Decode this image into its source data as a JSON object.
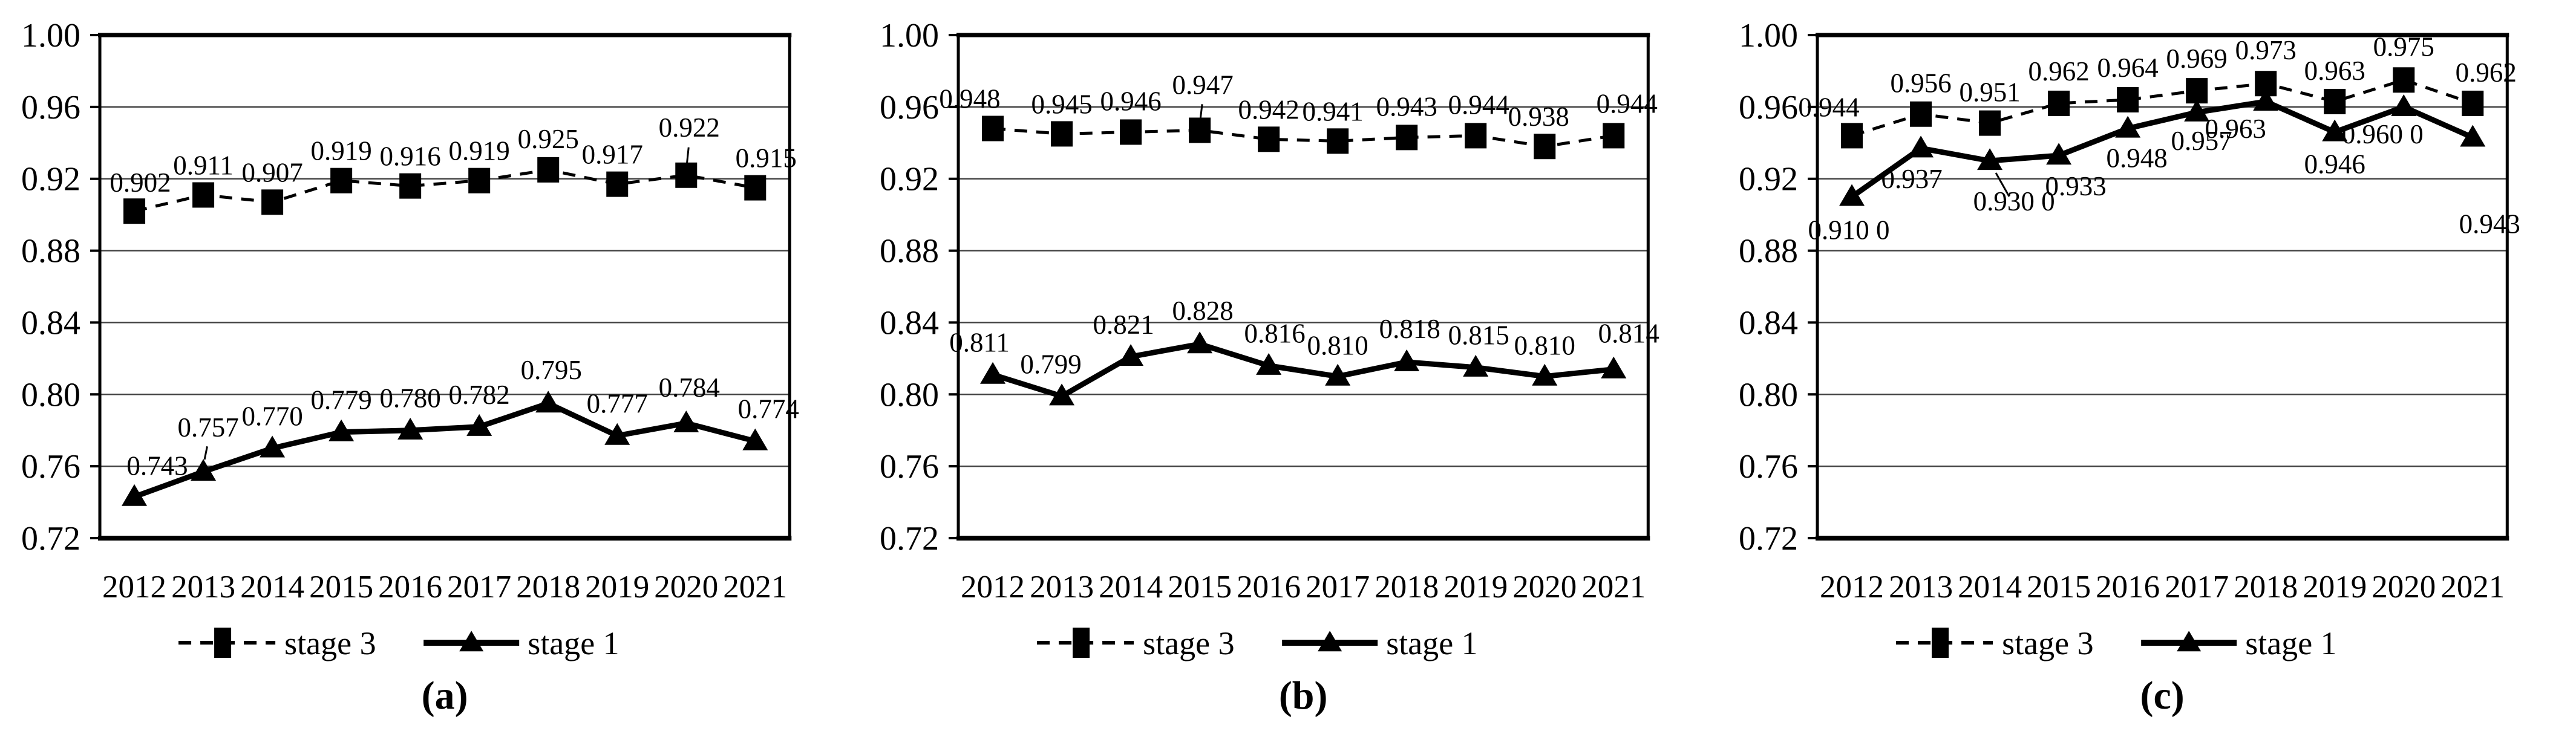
{
  "figure": {
    "background": "#ffffff",
    "ink_color": "#000000",
    "gridline_color": "#3f3f3f"
  },
  "chart_data": [
    {
      "id": "a",
      "type": "line",
      "caption": "(a)",
      "categories": [
        "2012",
        "2013",
        "2014",
        "2015",
        "2016",
        "2017",
        "2018",
        "2019",
        "2020",
        "2021"
      ],
      "ylim": [
        0.72,
        1.0
      ],
      "y_tick_step": 0.04,
      "y_tick_labels": [
        "1.00",
        "0.96",
        "0.92",
        "0.88",
        "0.84",
        "0.80",
        "0.76",
        "0.72"
      ],
      "grid": true,
      "legend_position": "bottom",
      "series": [
        {
          "name": "stage 3",
          "marker": "square",
          "line_style": "dashed",
          "values": [
            0.902,
            0.911,
            0.907,
            0.919,
            0.916,
            0.919,
            0.925,
            0.917,
            0.922,
            0.915
          ],
          "labels": [
            "0.902",
            "0.911",
            "0.907",
            "0.919",
            "0.916",
            "0.919",
            "0.925",
            "0.917",
            "0.922",
            "0.915"
          ],
          "label_offsets": [
            [
              10,
              -32
            ],
            [
              0,
              -34
            ],
            [
              0,
              -34
            ],
            [
              0,
              -34
            ],
            [
              0,
              -34
            ],
            [
              0,
              -34
            ],
            [
              0,
              -36
            ],
            [
              -8,
              -34
            ],
            [
              5,
              -64,
              1
            ],
            [
              18,
              -34
            ]
          ]
        },
        {
          "name": "stage 1",
          "marker": "triangle",
          "line_style": "solid",
          "values": [
            0.743,
            0.757,
            0.77,
            0.779,
            0.78,
            0.782,
            0.795,
            0.777,
            0.784,
            0.774
          ],
          "labels": [
            "0.743",
            "0.757",
            "0.770",
            "0.779",
            "0.780",
            "0.782",
            "0.795",
            "0.777",
            "0.784",
            "0.774"
          ],
          "label_offsets": [
            [
              38,
              -36
            ],
            [
              8,
              -58,
              1
            ],
            [
              0,
              -38
            ],
            [
              0,
              -38
            ],
            [
              0,
              -38
            ],
            [
              0,
              -38
            ],
            [
              5,
              -40
            ],
            [
              0,
              -38
            ],
            [
              5,
              -44
            ],
            [
              22,
              -38
            ]
          ]
        }
      ]
    },
    {
      "id": "b",
      "type": "line",
      "caption": "(b)",
      "categories": [
        "2012",
        "2013",
        "2014",
        "2015",
        "2016",
        "2017",
        "2018",
        "2019",
        "2020",
        "2021"
      ],
      "ylim": [
        0.72,
        1.0
      ],
      "y_tick_step": 0.04,
      "y_tick_labels": [
        "1.00",
        "0.96",
        "0.92",
        "0.88",
        "0.84",
        "0.80",
        "0.76",
        "0.72"
      ],
      "grid": true,
      "legend_position": "bottom",
      "series": [
        {
          "name": "stage 3",
          "marker": "square",
          "line_style": "dashed",
          "values": [
            0.948,
            0.945,
            0.946,
            0.947,
            0.942,
            0.941,
            0.943,
            0.944,
            0.938,
            0.944
          ],
          "labels": [
            "0.948",
            "0.945",
            "0.946",
            "0.947",
            "0.942",
            "0.941",
            "0.943",
            "0.944",
            "0.938",
            "0.944"
          ],
          "label_offsets": [
            [
              -38,
              -34
            ],
            [
              0,
              -34
            ],
            [
              0,
              -36
            ],
            [
              5,
              -60,
              1
            ],
            [
              0,
              -34
            ],
            [
              -8,
              -34
            ],
            [
              0,
              -36
            ],
            [
              5,
              -36
            ],
            [
              -10,
              -34
            ],
            [
              22,
              -38
            ]
          ]
        },
        {
          "name": "stage 1",
          "marker": "triangle",
          "line_style": "solid",
          "values": [
            0.811,
            0.799,
            0.821,
            0.828,
            0.816,
            0.81,
            0.818,
            0.815,
            0.81,
            0.814
          ],
          "labels": [
            "0.811",
            "0.799",
            "0.821",
            "0.828",
            "0.816",
            "0.810",
            "0.818",
            "0.815",
            "0.810",
            "0.814"
          ],
          "label_offsets": [
            [
              -22,
              -38
            ],
            [
              -18,
              -38
            ],
            [
              -12,
              -38
            ],
            [
              5,
              -40
            ],
            [
              10,
              -38
            ],
            [
              0,
              -36
            ],
            [
              5,
              -40
            ],
            [
              5,
              -38
            ],
            [
              0,
              -36
            ],
            [
              25,
              -44
            ]
          ]
        }
      ]
    },
    {
      "id": "c",
      "type": "line",
      "caption": "(c)",
      "categories": [
        "2012",
        "2013",
        "2014",
        "2015",
        "2016",
        "2017",
        "2018",
        "2019",
        "2020",
        "2021"
      ],
      "ylim": [
        0.72,
        1.0
      ],
      "y_tick_step": 0.04,
      "y_tick_labels": [
        "1.00",
        "0.96",
        "0.92",
        "0.88",
        "0.84",
        "0.80",
        "0.76",
        "0.72"
      ],
      "grid": true,
      "legend_position": "bottom",
      "series": [
        {
          "name": "stage 3",
          "marker": "square",
          "line_style": "dashed",
          "values": [
            0.944,
            0.956,
            0.951,
            0.962,
            0.964,
            0.969,
            0.973,
            0.963,
            0.975,
            0.962
          ],
          "labels": [
            "0.944",
            "0.956",
            "0.951",
            "0.962",
            "0.964",
            "0.969",
            "0.973",
            "0.963",
            "0.975",
            "0.962"
          ],
          "label_offsets": [
            [
              -38,
              -32
            ],
            [
              0,
              -36
            ],
            [
              0,
              -36
            ],
            [
              0,
              -38
            ],
            [
              0,
              -38
            ],
            [
              0,
              -38
            ],
            [
              0,
              -40
            ],
            [
              0,
              -36
            ],
            [
              0,
              -40
            ],
            [
              22,
              -36
            ]
          ]
        },
        {
          "name": "stage 1",
          "marker": "triangle",
          "line_style": "solid",
          "values": [
            0.91,
            0.937,
            0.93,
            0.933,
            0.948,
            0.957,
            0.963,
            0.946,
            0.96,
            0.943
          ],
          "labels": [
            "0.910 0",
            "0.937",
            "0.930 0",
            "0.933",
            "0.948",
            "0.957",
            "0.963",
            "0.946",
            "0.960 0",
            "0.943"
          ],
          "label_offsets": [
            [
              -5,
              70
            ],
            [
              -15,
              66
            ],
            [
              40,
              82,
              1
            ],
            [
              28,
              66
            ],
            [
              15,
              64
            ],
            [
              8,
              62
            ],
            [
              -50,
              60
            ],
            [
              0,
              68
            ],
            [
              -35,
              60
            ],
            [
              28,
              158
            ]
          ]
        }
      ]
    }
  ],
  "legend": {
    "items": [
      {
        "label": "stage 3",
        "marker": "square",
        "line_style": "dashed"
      },
      {
        "label": "stage 1",
        "marker": "triangle",
        "line_style": "solid"
      }
    ]
  }
}
